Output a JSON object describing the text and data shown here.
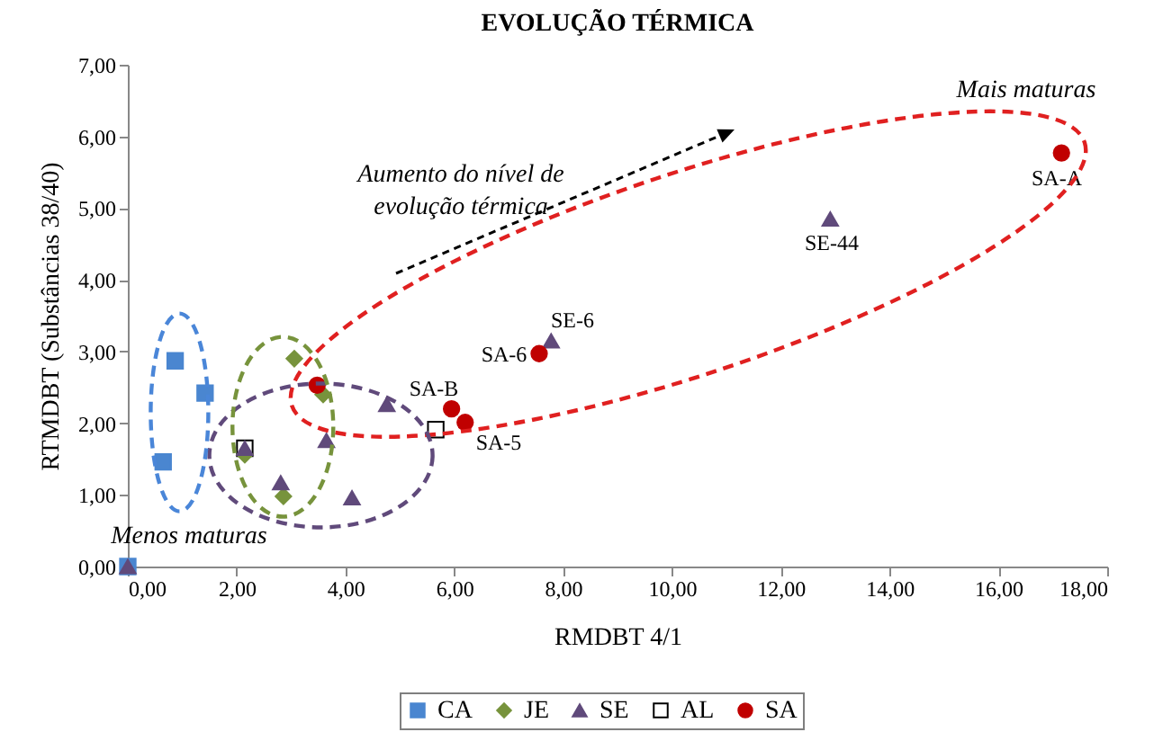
{
  "chart_data": {
    "type": "scatter",
    "title": "EVOLUÇÃO TÉRMICA",
    "xlabel": "RMDBT 4/1",
    "ylabel": "RTMDBT (Substâncias  38/40)",
    "xlim": [
      0,
      18
    ],
    "ylim": [
      0,
      7
    ],
    "xticks": [
      {
        "value": 0,
        "label": "0,00"
      },
      {
        "value": 2,
        "label": "2,00"
      },
      {
        "value": 4,
        "label": "4,00"
      },
      {
        "value": 6,
        "label": "6,00"
      },
      {
        "value": 8,
        "label": "8,00"
      },
      {
        "value": 10,
        "label": "10,00"
      },
      {
        "value": 12,
        "label": "12,00"
      },
      {
        "value": 14,
        "label": "14,00"
      },
      {
        "value": 16,
        "label": "16,00"
      },
      {
        "value": 18,
        "label": "18,00"
      }
    ],
    "yticks": [
      {
        "value": 0,
        "label": "0,00"
      },
      {
        "value": 1,
        "label": "1,00"
      },
      {
        "value": 2,
        "label": "2,00"
      },
      {
        "value": 3,
        "label": "3,00"
      },
      {
        "value": 4,
        "label": "4,00"
      },
      {
        "value": 5,
        "label": "5,00"
      },
      {
        "value": 6,
        "label": "6,00"
      },
      {
        "value": 7,
        "label": "7,00"
      }
    ],
    "grid": false,
    "legend": "bottom",
    "series": [
      {
        "name": "CA",
        "color": "#4a86d0",
        "marker": "square",
        "x": [
          0,
          0.65,
          0.87,
          1.42
        ],
        "values": [
          0,
          1.46,
          2.87,
          2.42
        ]
      },
      {
        "name": "JE",
        "color": "#77933c",
        "marker": "diamond",
        "x": [
          3.06,
          3.59,
          2.15,
          2.86
        ],
        "values": [
          2.9,
          2.4,
          1.56,
          0.98
        ]
      },
      {
        "name": "SE",
        "color": "#604a7b",
        "marker": "triangle",
        "x": [
          0,
          2.15,
          2.81,
          3.65,
          4.12,
          4.76,
          7.78,
          12.91
        ],
        "values": [
          0,
          1.65,
          1.17,
          1.76,
          0.96,
          2.26,
          3.15,
          4.85
        ]
      },
      {
        "name": "AL",
        "color": "#000000",
        "marker": "square-open",
        "x": [
          2.15,
          5.66
        ],
        "values": [
          1.65,
          1.91
        ]
      },
      {
        "name": "SA",
        "color": "#c00000",
        "marker": "circle",
        "x": [
          3.48,
          5.95,
          6.2,
          7.56,
          17.16
        ],
        "values": [
          2.53,
          2.2,
          2.01,
          2.97,
          5.77
        ]
      }
    ],
    "annotations": [
      "SE-44",
      "SE-6",
      "SA-6",
      "SA-B",
      "SA-5",
      "SA-A",
      "Mais maturas",
      "Menos maturas",
      "Aumento do nível de evolução térmica"
    ]
  }
}
